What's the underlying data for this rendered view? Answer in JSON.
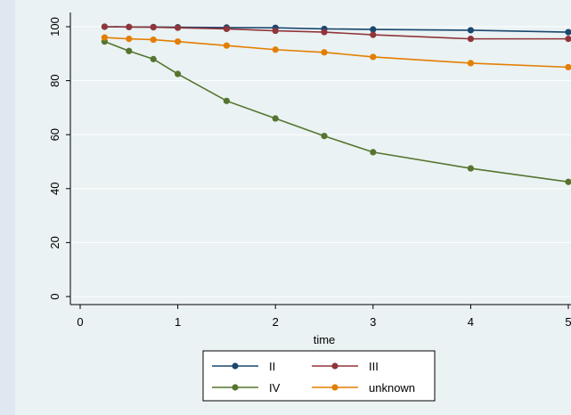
{
  "chart_data": {
    "type": "line",
    "xlabel": "time",
    "ylabel": "",
    "xlim": [
      0,
      5
    ],
    "ylim": [
      0,
      100
    ],
    "xticks": [
      0,
      1,
      2,
      3,
      4,
      5
    ],
    "yticks": [
      0,
      20,
      40,
      60,
      80,
      100
    ],
    "grid": true,
    "legend_position": "bottom",
    "legend_columns": 2,
    "series": [
      {
        "name": "II",
        "color": "#1a476f",
        "x": [
          0.25,
          0.5,
          0.75,
          1,
          1.5,
          2,
          2.5,
          3,
          4,
          5
        ],
        "values": [
          100,
          99.9,
          99.9,
          99.8,
          99.7,
          99.6,
          99.2,
          99.0,
          98.7,
          98.0
        ]
      },
      {
        "name": "III",
        "color": "#90353b",
        "x": [
          0.25,
          0.5,
          0.75,
          1,
          1.5,
          2,
          2.5,
          3,
          4,
          5
        ],
        "values": [
          100,
          99.9,
          99.8,
          99.6,
          99.2,
          98.5,
          98.0,
          97.0,
          95.5,
          95.5
        ]
      },
      {
        "name": "IV",
        "color": "#55752f",
        "x": [
          0.25,
          0.5,
          0.75,
          1,
          1.5,
          2,
          2.5,
          3,
          4,
          5
        ],
        "values": [
          94.5,
          91.0,
          88.0,
          82.5,
          72.5,
          66.0,
          59.5,
          53.5,
          47.5,
          42.5
        ]
      },
      {
        "name": "unknown",
        "color": "#e37e00",
        "x": [
          0.25,
          0.5,
          0.75,
          1,
          1.5,
          2,
          2.5,
          3,
          4,
          5
        ],
        "values": [
          96.0,
          95.5,
          95.2,
          94.5,
          93.0,
          91.5,
          90.5,
          88.8,
          86.5,
          85.0
        ]
      }
    ]
  }
}
